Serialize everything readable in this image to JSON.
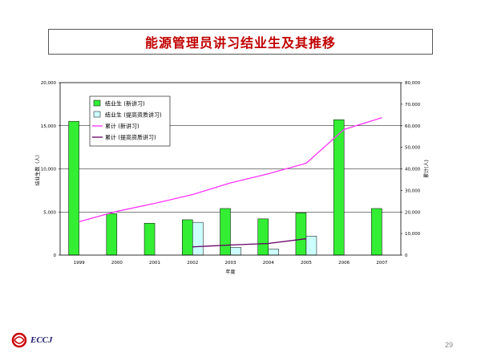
{
  "slide": {
    "title": "能源管理员讲习结业生及其推移",
    "page_number": "29",
    "logo_text": "ECCJ"
  },
  "colors": {
    "title": "#c00000",
    "new_bar": "#33ee33",
    "adv_bar": "#ccffff",
    "cum_new_line": "#ff33ff",
    "cum_adv_line": "#660066",
    "logo_red": "#cc0000"
  },
  "chart_data": {
    "type": "bar",
    "title": "",
    "xlabel": "年度",
    "ylabel": "结业生数（人）",
    "ylabel_right": "累计(人)",
    "categories": [
      "1999",
      "2000",
      "2001",
      "2002",
      "2003",
      "2004",
      "2005",
      "2006",
      "2007"
    ],
    "ylim": [
      0,
      20000
    ],
    "ylim_right": [
      0,
      80000
    ],
    "yticks": [
      "0",
      "5,000",
      "10,000",
      "15,000",
      "20,000"
    ],
    "yticks_right": [
      "0",
      "10,000",
      "20,000",
      "30,000",
      "40,000",
      "50,000",
      "60,000",
      "70,000",
      "80,000"
    ],
    "grid": true,
    "legend_position": "top-left",
    "series": [
      {
        "name": "结业生 (新讲习)",
        "kind": "bar",
        "axis": "left",
        "values": [
          15500,
          4800,
          3700,
          4100,
          5400,
          4200,
          4900,
          15700,
          5400
        ]
      },
      {
        "name": "结业生 (提高资质讲习)",
        "kind": "bar",
        "axis": "left",
        "values": [
          null,
          null,
          null,
          3800,
          900,
          700,
          2200,
          null,
          null
        ]
      },
      {
        "name": "累计 (新讲习)",
        "kind": "line",
        "axis": "right",
        "values": [
          15500,
          20300,
          24000,
          28100,
          33500,
          37700,
          42600,
          58300,
          63700
        ]
      },
      {
        "name": "累计 (提高资质讲习)",
        "kind": "line",
        "axis": "right",
        "values": [
          null,
          null,
          null,
          3800,
          4700,
          5400,
          7600,
          null,
          null
        ]
      }
    ]
  }
}
